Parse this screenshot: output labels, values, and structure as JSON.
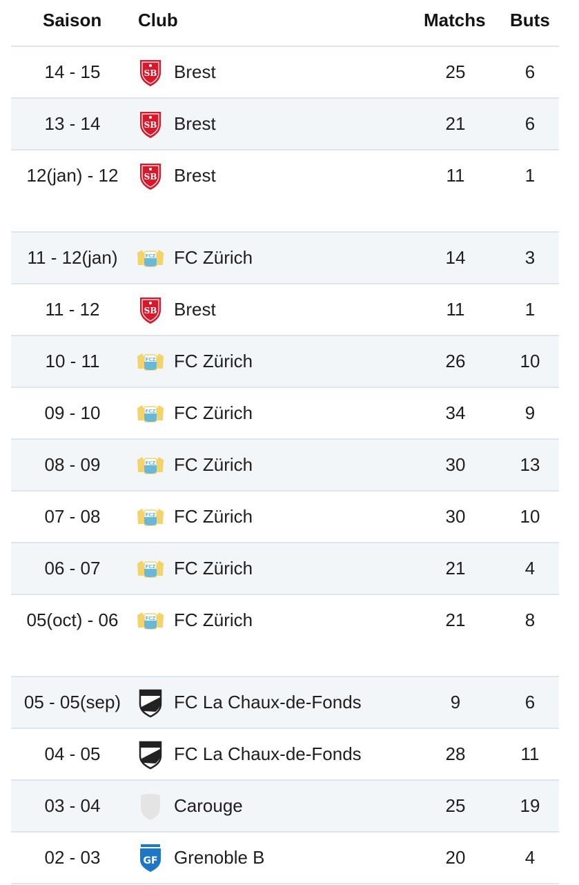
{
  "headers": {
    "season": "Saison",
    "club": "Club",
    "matches": "Matchs",
    "goals": "Buts"
  },
  "rows": [
    {
      "season": "14 - 15",
      "club": "Brest",
      "logo": "brest-crest-icon",
      "matches": "25",
      "goals": "6",
      "lines": 1
    },
    {
      "season": "13 - 14",
      "club": "Brest",
      "logo": "brest-crest-icon",
      "matches": "21",
      "goals": "6",
      "lines": 1
    },
    {
      "season": "12(jan) - 12",
      "club": "Brest",
      "logo": "brest-crest-icon",
      "matches": "11",
      "goals": "1",
      "lines": 2
    },
    {
      "season": "11 - 12(jan)",
      "club": "FC Zürich",
      "logo": "fc-zurich-crest-icon",
      "matches": "14",
      "goals": "3",
      "lines": 1
    },
    {
      "season": "11 - 12",
      "club": "Brest",
      "logo": "brest-crest-icon",
      "matches": "11",
      "goals": "1",
      "lines": 1
    },
    {
      "season": "10 - 11",
      "club": "FC Zürich",
      "logo": "fc-zurich-crest-icon",
      "matches": "26",
      "goals": "10",
      "lines": 1
    },
    {
      "season": "09 - 10",
      "club": "FC Zürich",
      "logo": "fc-zurich-crest-icon",
      "matches": "34",
      "goals": "9",
      "lines": 1
    },
    {
      "season": "08 - 09",
      "club": "FC Zürich",
      "logo": "fc-zurich-crest-icon",
      "matches": "30",
      "goals": "13",
      "lines": 1
    },
    {
      "season": "07 - 08",
      "club": "FC Zürich",
      "logo": "fc-zurich-crest-icon",
      "matches": "30",
      "goals": "10",
      "lines": 1
    },
    {
      "season": "06 - 07",
      "club": "FC Zürich",
      "logo": "fc-zurich-crest-icon",
      "matches": "21",
      "goals": "4",
      "lines": 1
    },
    {
      "season": "05(oct) - 06",
      "club": "FC Zürich",
      "logo": "fc-zurich-crest-icon",
      "matches": "21",
      "goals": "8",
      "lines": 2
    },
    {
      "season": "05 - 05(sep)",
      "club": "FC La Chaux-de-Fonds",
      "logo": "fc-la-chaux-de-fonds-crest-icon",
      "matches": "9",
      "goals": "6",
      "lines": 1
    },
    {
      "season": "04 - 05",
      "club": "FC La Chaux-de-Fonds",
      "logo": "fc-la-chaux-de-fonds-crest-icon",
      "matches": "28",
      "goals": "11",
      "lines": 1
    },
    {
      "season": "03 - 04",
      "club": "Carouge",
      "logo": "carouge-crest-icon",
      "matches": "25",
      "goals": "19",
      "lines": 1
    },
    {
      "season": "02 - 03",
      "club": "Grenoble B",
      "logo": "grenoble-crest-icon",
      "matches": "20",
      "goals": "4",
      "lines": 1
    }
  ],
  "colors": {
    "row_alt": "#f3f6f9",
    "divider": "#dfe5ec",
    "brest_red": "#d7192b",
    "zurich_yellow": "#f2d46a",
    "zurich_blue": "#6ab8d8",
    "grenoble_blue": "#1d76c6"
  }
}
